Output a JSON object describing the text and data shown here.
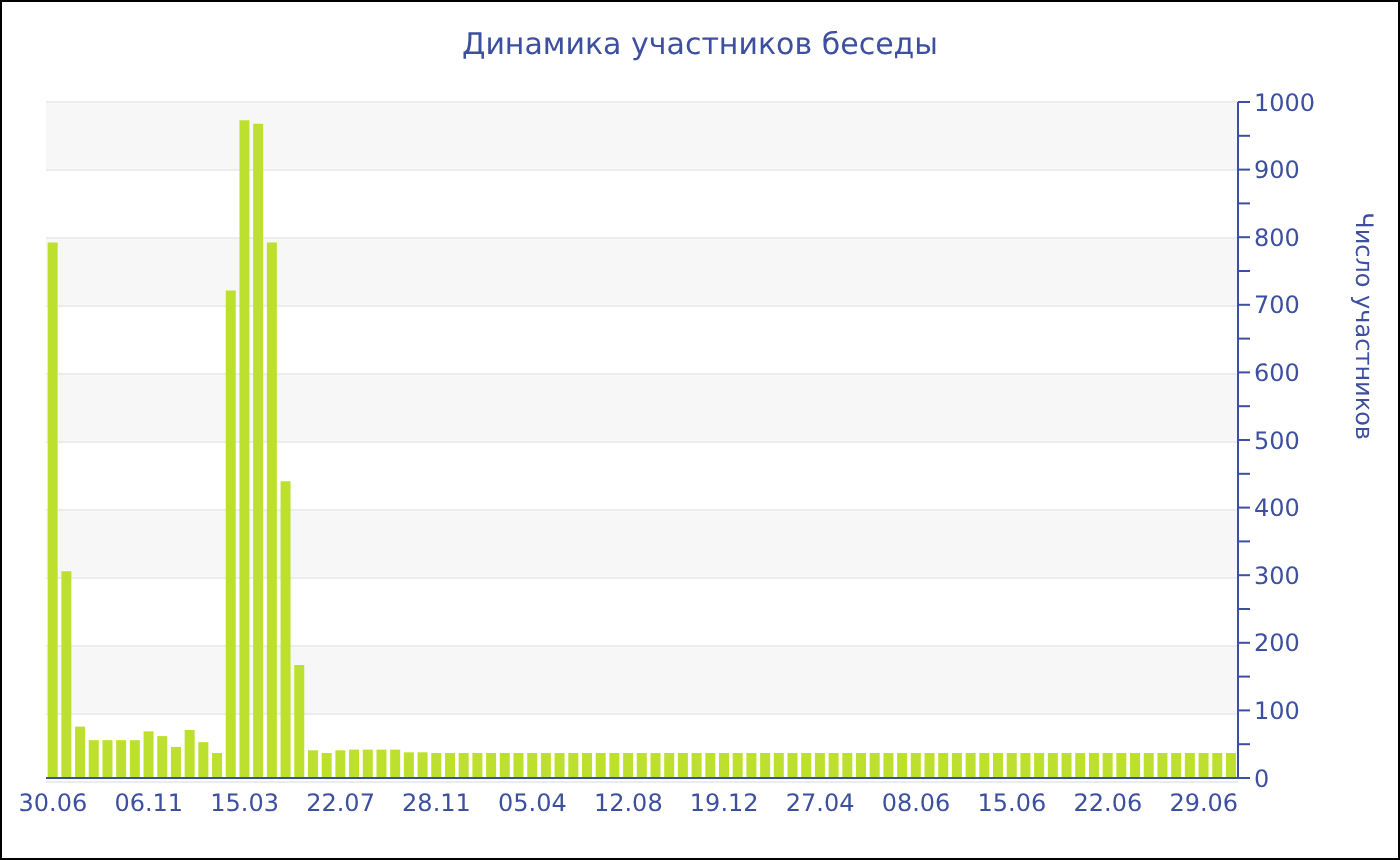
{
  "chart_data": {
    "type": "bar",
    "title": "Динамика участников беседы",
    "ylabel": "Число участников",
    "categories": [
      "30.06",
      null,
      null,
      null,
      null,
      null,
      null,
      "06.11",
      null,
      null,
      null,
      null,
      null,
      null,
      "15.03",
      null,
      null,
      null,
      null,
      null,
      null,
      "22.07",
      null,
      null,
      null,
      null,
      null,
      null,
      "28.11",
      null,
      null,
      null,
      null,
      null,
      null,
      "05.04",
      null,
      null,
      null,
      null,
      null,
      null,
      "12.08",
      null,
      null,
      null,
      null,
      null,
      null,
      "19.12",
      null,
      null,
      null,
      null,
      null,
      null,
      "27.04",
      null,
      null,
      null,
      null,
      null,
      null,
      "08.06",
      null,
      null,
      null,
      null,
      null,
      null,
      "15.06",
      null,
      null,
      null,
      null,
      null,
      null,
      "22.06",
      null,
      null,
      null,
      null,
      null,
      null,
      "29.06",
      null,
      null
    ],
    "values": [
      792,
      306,
      76,
      56,
      56,
      56,
      56,
      69,
      62,
      46,
      71,
      53,
      37,
      721,
      973,
      968,
      792,
      439,
      167,
      41,
      37,
      41,
      42,
      42,
      42,
      42,
      38,
      38,
      37,
      37,
      37,
      37,
      37,
      37,
      37,
      37,
      37,
      37,
      37,
      37,
      37,
      37,
      37,
      37,
      37,
      37,
      37,
      37,
      37,
      37,
      37,
      37,
      37,
      37,
      37,
      37,
      37,
      37,
      37,
      37,
      37,
      37,
      37,
      37,
      37,
      37,
      37,
      37,
      37,
      37,
      37,
      37,
      37,
      37,
      37,
      37,
      37,
      37,
      37,
      37,
      37,
      37,
      37,
      37,
      37,
      37,
      37
    ],
    "color": "#bde02e",
    "ylim": [
      0,
      1000
    ],
    "yticks": [
      0,
      {
        "value": 50,
        "label": null
      },
      100,
      {
        "value": 150,
        "label": null
      },
      200,
      {
        "value": 250,
        "label": null
      },
      300,
      {
        "value": 350,
        "label": null
      },
      400,
      {
        "value": 450,
        "label": null
      },
      500,
      {
        "value": 550,
        "label": null
      },
      600,
      {
        "value": 650,
        "label": null
      },
      700,
      {
        "value": 750,
        "label": null
      },
      800,
      {
        "value": 850,
        "label": null
      },
      900,
      {
        "value": 950,
        "label": null
      },
      1000
    ],
    "grid": "y"
  }
}
